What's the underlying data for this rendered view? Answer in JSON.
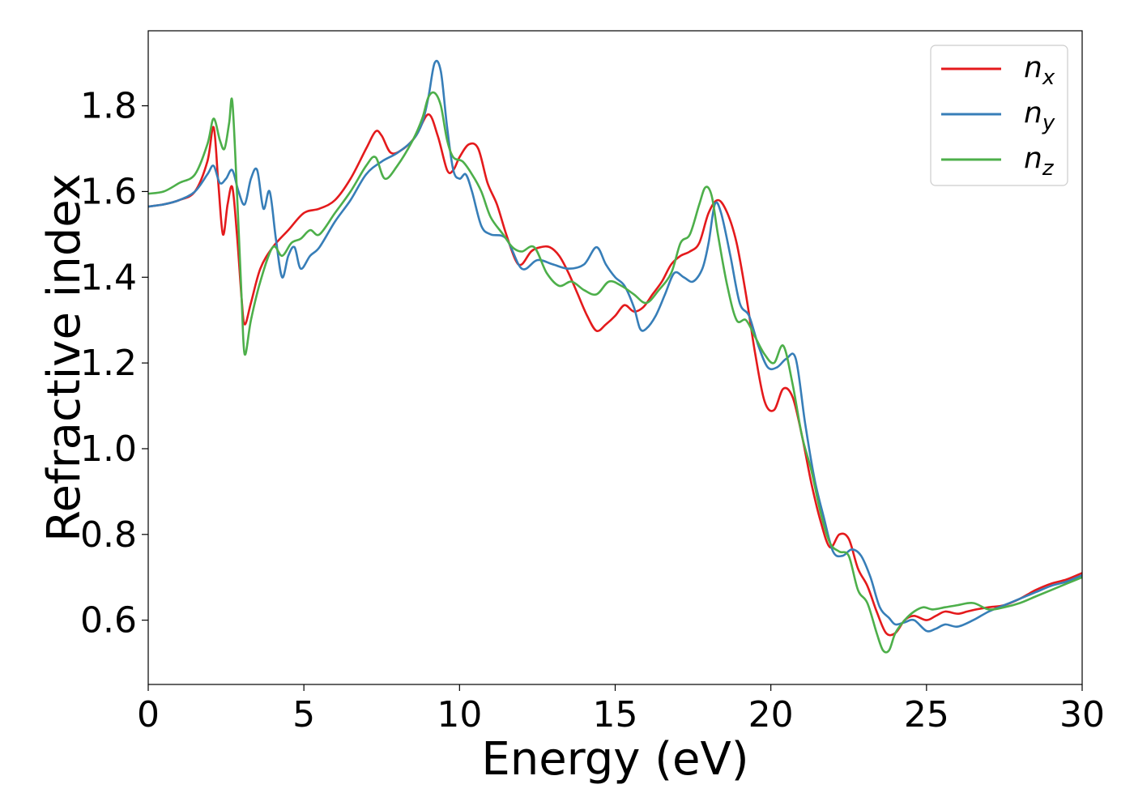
{
  "chart_data": {
    "type": "line",
    "xlabel": "Energy (eV)",
    "ylabel": "Refractive index",
    "xlim": [
      0,
      30
    ],
    "ylim": [
      0.45,
      1.975
    ],
    "xticks": [
      0,
      5,
      10,
      15,
      20,
      25,
      30
    ],
    "xtick_labels": [
      "0",
      "5",
      "10",
      "15",
      "20",
      "25",
      "30"
    ],
    "yticks": [
      0.6,
      0.8,
      1.0,
      1.2,
      1.4,
      1.6,
      1.8
    ],
    "ytick_labels": [
      "0.6",
      "0.8",
      "1.0",
      "1.2",
      "1.4",
      "1.6",
      "1.8"
    ],
    "grid": false,
    "legend_position": "top-right",
    "series": [
      {
        "name": "n",
        "subscript": "x",
        "color": "#e41a1c",
        "x": [
          0,
          0.5,
          1,
          1.5,
          1.9,
          2.1,
          2.25,
          2.4,
          2.55,
          2.7,
          2.85,
          3.0,
          3.1,
          3.3,
          3.6,
          4.0,
          4.5,
          5.0,
          5.5,
          6.0,
          6.5,
          7.0,
          7.3,
          7.5,
          7.8,
          8.2,
          8.6,
          9.0,
          9.3,
          9.6,
          9.8,
          10.0,
          10.3,
          10.6,
          10.9,
          11.2,
          11.5,
          11.8,
          12.0,
          12.3,
          12.6,
          12.9,
          13.2,
          13.5,
          13.8,
          14.1,
          14.4,
          14.7,
          15.0,
          15.3,
          15.6,
          15.9,
          16.2,
          16.5,
          16.8,
          17.1,
          17.4,
          17.7,
          18.0,
          18.3,
          18.6,
          18.9,
          19.2,
          19.5,
          19.8,
          20.1,
          20.4,
          20.7,
          21.0,
          21.3,
          21.6,
          21.9,
          22.2,
          22.5,
          22.8,
          23.1,
          23.4,
          23.7,
          24.0,
          24.3,
          24.6,
          25.0,
          25.3,
          25.6,
          26.0,
          26.3,
          26.6,
          27.0,
          27.5,
          28.0,
          28.5,
          29.0,
          29.5,
          30.0
        ],
        "y": [
          1.565,
          1.57,
          1.58,
          1.6,
          1.67,
          1.75,
          1.62,
          1.5,
          1.57,
          1.61,
          1.5,
          1.35,
          1.29,
          1.34,
          1.42,
          1.47,
          1.51,
          1.55,
          1.56,
          1.58,
          1.63,
          1.7,
          1.74,
          1.73,
          1.69,
          1.7,
          1.73,
          1.78,
          1.73,
          1.65,
          1.65,
          1.68,
          1.71,
          1.7,
          1.62,
          1.57,
          1.5,
          1.44,
          1.43,
          1.46,
          1.47,
          1.47,
          1.45,
          1.41,
          1.36,
          1.31,
          1.275,
          1.29,
          1.31,
          1.335,
          1.32,
          1.33,
          1.36,
          1.39,
          1.43,
          1.45,
          1.46,
          1.48,
          1.55,
          1.58,
          1.55,
          1.48,
          1.36,
          1.22,
          1.11,
          1.09,
          1.14,
          1.12,
          1.03,
          0.92,
          0.83,
          0.77,
          0.8,
          0.79,
          0.72,
          0.68,
          0.62,
          0.57,
          0.57,
          0.6,
          0.61,
          0.6,
          0.61,
          0.62,
          0.615,
          0.62,
          0.625,
          0.63,
          0.635,
          0.65,
          0.67,
          0.685,
          0.695,
          0.71
        ]
      },
      {
        "name": "n",
        "subscript": "y",
        "color": "#377eb8",
        "x": [
          0,
          0.5,
          1,
          1.5,
          1.9,
          2.1,
          2.3,
          2.5,
          2.7,
          2.9,
          3.1,
          3.3,
          3.5,
          3.7,
          3.9,
          4.1,
          4.3,
          4.5,
          4.7,
          4.9,
          5.2,
          5.5,
          6.0,
          6.5,
          7.0,
          7.5,
          8.0,
          8.5,
          8.8,
          9.0,
          9.2,
          9.4,
          9.6,
          9.8,
          10.0,
          10.2,
          10.4,
          10.7,
          11.0,
          11.5,
          12.0,
          12.5,
          13.0,
          13.5,
          14.0,
          14.4,
          14.7,
          15.0,
          15.3,
          15.6,
          15.8,
          16.0,
          16.3,
          16.6,
          16.9,
          17.2,
          17.5,
          17.8,
          18.0,
          18.2,
          18.4,
          18.7,
          19.0,
          19.3,
          19.6,
          19.9,
          20.2,
          20.5,
          20.8,
          21.1,
          21.4,
          21.7,
          22.0,
          22.3,
          22.6,
          22.9,
          23.2,
          23.5,
          23.8,
          24.0,
          24.3,
          24.6,
          25.0,
          25.3,
          25.6,
          26.0,
          26.5,
          27.0,
          27.5,
          28.0,
          28.5,
          29.0,
          29.5,
          30.0
        ],
        "y": [
          1.565,
          1.57,
          1.58,
          1.6,
          1.64,
          1.66,
          1.62,
          1.63,
          1.65,
          1.6,
          1.57,
          1.63,
          1.65,
          1.56,
          1.6,
          1.49,
          1.4,
          1.45,
          1.47,
          1.42,
          1.45,
          1.47,
          1.53,
          1.58,
          1.64,
          1.67,
          1.69,
          1.72,
          1.76,
          1.82,
          1.9,
          1.88,
          1.75,
          1.65,
          1.63,
          1.64,
          1.6,
          1.52,
          1.5,
          1.49,
          1.42,
          1.44,
          1.43,
          1.42,
          1.43,
          1.47,
          1.43,
          1.4,
          1.38,
          1.33,
          1.28,
          1.28,
          1.31,
          1.36,
          1.41,
          1.4,
          1.39,
          1.42,
          1.48,
          1.57,
          1.55,
          1.45,
          1.34,
          1.31,
          1.24,
          1.19,
          1.19,
          1.21,
          1.21,
          1.06,
          0.93,
          0.84,
          0.76,
          0.75,
          0.765,
          0.75,
          0.7,
          0.63,
          0.605,
          0.59,
          0.595,
          0.6,
          0.575,
          0.58,
          0.59,
          0.585,
          0.6,
          0.62,
          0.635,
          0.65,
          0.665,
          0.68,
          0.69,
          0.705
        ]
      },
      {
        "name": "n",
        "subscript": "z",
        "color": "#4daf4a",
        "x": [
          0,
          0.5,
          1,
          1.5,
          1.9,
          2.1,
          2.3,
          2.45,
          2.6,
          2.7,
          2.85,
          3.0,
          3.1,
          3.3,
          3.6,
          4.0,
          4.3,
          4.6,
          4.9,
          5.2,
          5.5,
          6.0,
          6.5,
          7.0,
          7.3,
          7.6,
          8.0,
          8.5,
          8.8,
          9.0,
          9.2,
          9.4,
          9.6,
          9.8,
          10.1,
          10.4,
          10.7,
          11.0,
          11.4,
          11.7,
          12.0,
          12.4,
          12.8,
          13.2,
          13.6,
          14.0,
          14.4,
          14.8,
          15.2,
          15.6,
          16.0,
          16.4,
          16.8,
          17.1,
          17.4,
          17.7,
          17.9,
          18.1,
          18.3,
          18.6,
          18.9,
          19.2,
          19.5,
          19.8,
          20.1,
          20.4,
          20.7,
          21.0,
          21.3,
          21.6,
          21.9,
          22.2,
          22.5,
          22.8,
          23.1,
          23.4,
          23.6,
          23.8,
          24.0,
          24.3,
          24.6,
          24.9,
          25.2,
          25.6,
          26.0,
          26.5,
          27.0,
          27.5,
          28.0,
          28.5,
          29.0,
          29.5,
          30.0
        ],
        "y": [
          1.595,
          1.6,
          1.62,
          1.64,
          1.71,
          1.77,
          1.72,
          1.7,
          1.76,
          1.81,
          1.6,
          1.35,
          1.22,
          1.3,
          1.39,
          1.47,
          1.45,
          1.48,
          1.49,
          1.51,
          1.5,
          1.55,
          1.6,
          1.66,
          1.68,
          1.63,
          1.66,
          1.72,
          1.77,
          1.82,
          1.83,
          1.8,
          1.72,
          1.68,
          1.67,
          1.64,
          1.6,
          1.54,
          1.5,
          1.47,
          1.46,
          1.47,
          1.41,
          1.38,
          1.39,
          1.37,
          1.36,
          1.39,
          1.38,
          1.36,
          1.34,
          1.37,
          1.41,
          1.48,
          1.5,
          1.57,
          1.61,
          1.59,
          1.5,
          1.38,
          1.3,
          1.3,
          1.26,
          1.22,
          1.2,
          1.24,
          1.15,
          1.03,
          0.95,
          0.85,
          0.78,
          0.76,
          0.75,
          0.67,
          0.64,
          0.57,
          0.53,
          0.53,
          0.57,
          0.6,
          0.62,
          0.63,
          0.625,
          0.63,
          0.635,
          0.64,
          0.625,
          0.63,
          0.64,
          0.655,
          0.67,
          0.685,
          0.7
        ]
      }
    ]
  }
}
